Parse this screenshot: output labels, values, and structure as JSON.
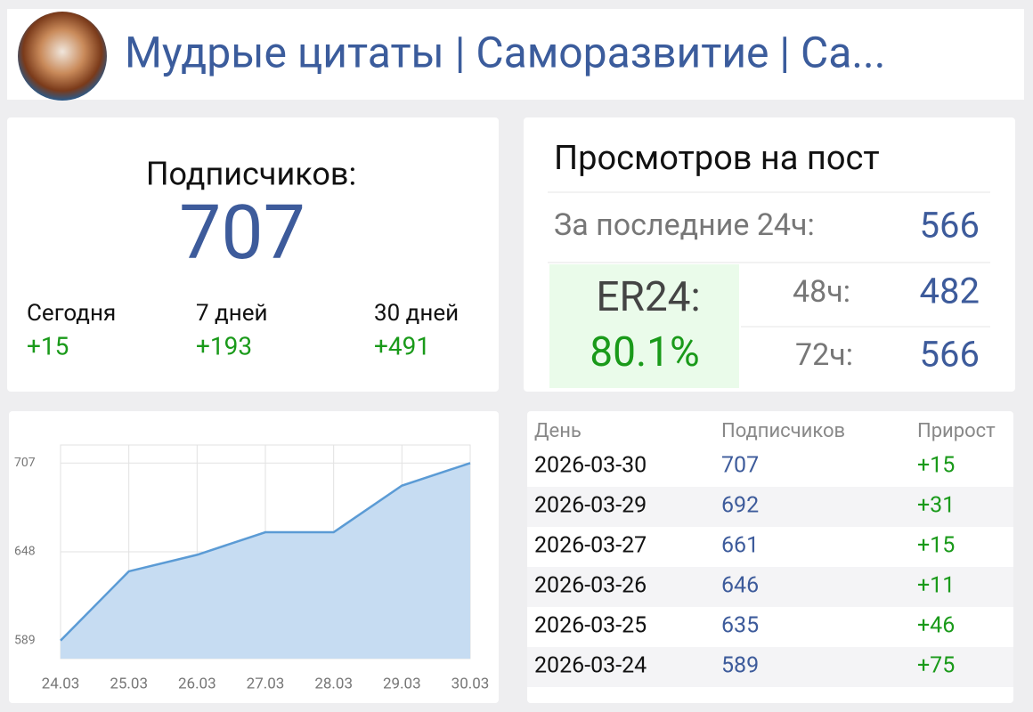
{
  "header": {
    "title": "Мудрые цитаты | Саморазвитие | Са..."
  },
  "subscribers": {
    "label": "Подписчиков:",
    "count": 707,
    "periods": [
      {
        "label": "Сегодня",
        "change": "+15"
      },
      {
        "label": "7 дней",
        "change": "+193"
      },
      {
        "label": "30 дней",
        "change": "+491"
      }
    ]
  },
  "views": {
    "title": "Просмотров на пост",
    "last24_label": "За последние 24ч:",
    "last24": 566,
    "er_label": "ER24:",
    "er_value": "80.1%",
    "h48_label": "48ч:",
    "h48": 482,
    "h72_label": "72ч:",
    "h72": 566
  },
  "chart_data": {
    "type": "line",
    "area": true,
    "categories": [
      "24.03",
      "25.03",
      "26.03",
      "27.03",
      "28.03",
      "29.03",
      "30.03"
    ],
    "values": [
      589,
      635,
      646,
      661,
      661,
      692,
      707
    ],
    "color": "#5b9bd5",
    "fill_color": "#c6dcf2",
    "ylim": [
      577,
      719
    ],
    "yticks": [
      589,
      648,
      707
    ],
    "grid": true
  },
  "table": {
    "headers": [
      "День",
      "Подписчиков",
      "Прирост"
    ],
    "rows": [
      [
        "2026-03-30",
        "707",
        "+15"
      ],
      [
        "2026-03-29",
        "692",
        "+31"
      ],
      [
        "2026-03-27",
        "661",
        "+15"
      ],
      [
        "2026-03-26",
        "646",
        "+11"
      ],
      [
        "2026-03-25",
        "635",
        "+46"
      ],
      [
        "2026-03-24",
        "589",
        "+75"
      ]
    ]
  }
}
